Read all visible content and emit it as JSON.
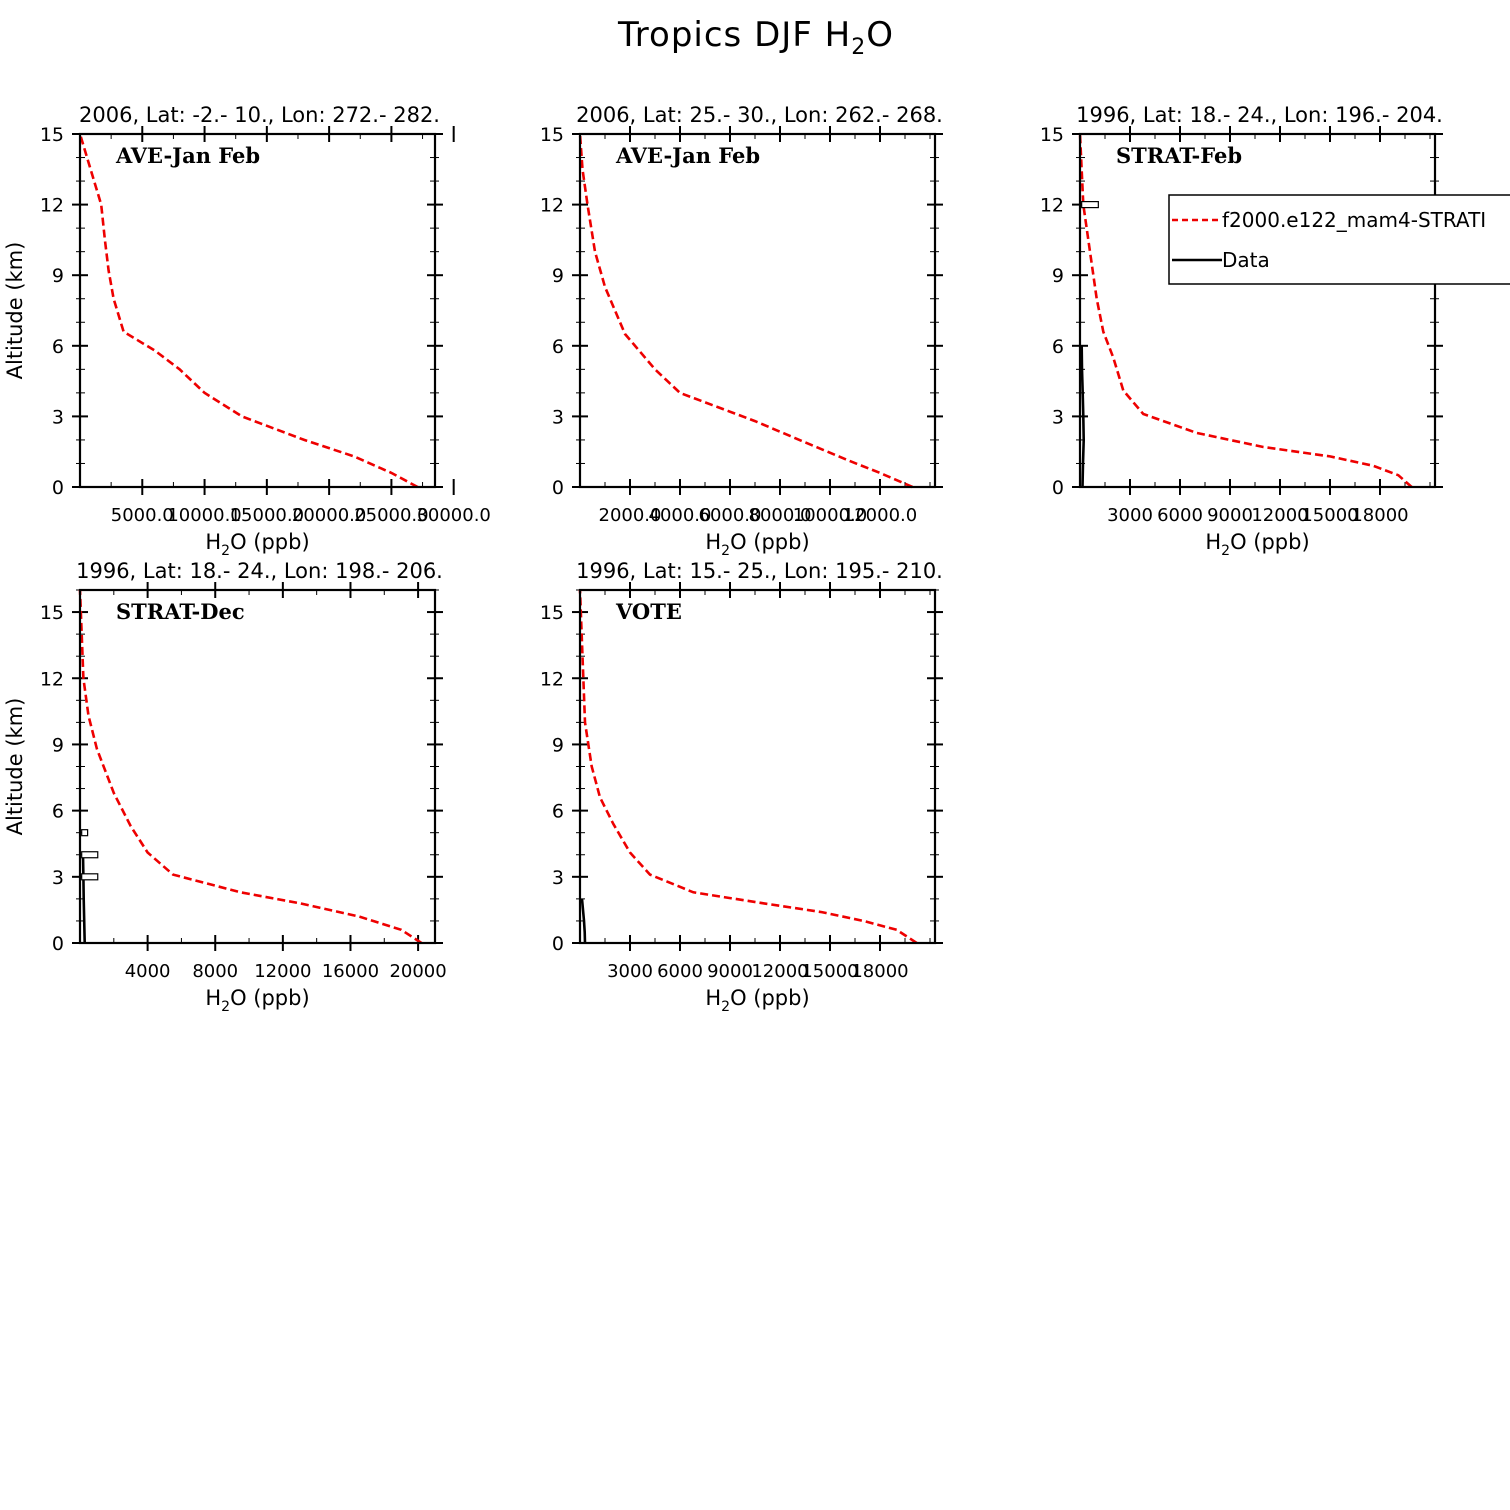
{
  "figure": {
    "title_main": "Tropics DJF H",
    "title_sub": "2",
    "title_tail": "O"
  },
  "legend": {
    "model_label": "f2000.e122_mam4-STRATI",
    "data_label": "Data",
    "model_color": "#ee0000",
    "data_color": "#000000"
  },
  "chart_data": [
    {
      "type": "line",
      "title": "2006, Lat: -2.- 10., Lon: 272.- 282.",
      "annotation": "AVE-Jan Feb",
      "xlabel_main": "H",
      "xlabel_sub": "2",
      "xlabel_tail": "O (ppb)",
      "ylabel": "Altitude (km)",
      "xlim": [
        0,
        28500
      ],
      "ylim": [
        0,
        15
      ],
      "yticks": [
        0,
        3,
        6,
        9,
        12,
        15
      ],
      "xticks": [
        5000,
        10000,
        15000,
        20000,
        25000,
        30000
      ],
      "xtick_labels": [
        "5000.0",
        "10000.0",
        "15000.0",
        "20000.0",
        "25000.0",
        "30000.0"
      ],
      "series": [
        {
          "name": "model",
          "x": [
            27100,
            25000,
            22000,
            18000,
            13000,
            10000,
            8000,
            6000,
            3500,
            2700,
            2300,
            2000,
            1700,
            0
          ],
          "y": [
            0,
            0.6,
            1.3,
            2.0,
            3.0,
            4.0,
            5.0,
            5.8,
            6.6,
            8.0,
            9.2,
            10.5,
            12.0,
            15.0
          ]
        }
      ],
      "obs": []
    },
    {
      "type": "line",
      "title": "2006, Lat: 25.- 30., Lon: 262.- 268.",
      "annotation": "AVE-Jan Feb",
      "xlabel_main": "H",
      "xlabel_sub": "2",
      "xlabel_tail": "O (ppb)",
      "ylabel": "",
      "xlim": [
        0,
        14200
      ],
      "ylim": [
        0,
        15
      ],
      "yticks": [
        0,
        3,
        6,
        9,
        12,
        15
      ],
      "xticks": [
        2000,
        4000,
        6000,
        8000,
        10000,
        12000
      ],
      "xtick_labels": [
        "2000.0",
        "4000.0",
        "6000.0",
        "8000.0",
        "10000.0",
        "12000.0"
      ],
      "series": [
        {
          "name": "model",
          "x": [
            13300,
            12000,
            10800,
            9000,
            7000,
            5500,
            4000,
            3000,
            1800,
            1000,
            600,
            300,
            100,
            0
          ],
          "y": [
            0,
            0.6,
            1.1,
            1.9,
            2.8,
            3.4,
            4.0,
            5.0,
            6.5,
            8.5,
            10.0,
            12.0,
            13.5,
            15.0
          ]
        }
      ],
      "obs": []
    },
    {
      "type": "line",
      "title": "1996, Lat: 18.- 24., Lon: 196.- 204.",
      "annotation": "STRAT-Feb",
      "xlabel_main": "H",
      "xlabel_sub": "2",
      "xlabel_tail": "O (ppb)",
      "ylabel": "",
      "xlim": [
        0,
        21300
      ],
      "ylim": [
        0,
        15
      ],
      "yticks": [
        0,
        3,
        6,
        9,
        12,
        15
      ],
      "xticks": [
        3000,
        6000,
        9000,
        12000,
        15000,
        18000
      ],
      "xtick_labels": [
        "3000",
        "6000",
        "9000",
        "12000",
        "15000",
        "18000"
      ],
      "series": [
        {
          "name": "model",
          "x": [
            19900,
            19100,
            17600,
            15000,
            11000,
            7000,
            3800,
            2600,
            2000,
            1400,
            1000,
            600,
            200,
            0
          ],
          "y": [
            0,
            0.5,
            0.9,
            1.3,
            1.7,
            2.3,
            3.1,
            4.1,
            5.5,
            6.6,
            8.0,
            10.0,
            12.0,
            15.0
          ]
        },
        {
          "name": "data",
          "x": [
            150,
            180,
            220,
            200,
            160,
            120,
            100
          ],
          "y": [
            0,
            1.0,
            2.0,
            3.0,
            4.0,
            5.0,
            6.0
          ]
        }
      ],
      "obs": [
        {
          "y": 12.0,
          "min": 100,
          "max": 1100
        }
      ]
    },
    {
      "type": "line",
      "title": "1996, Lat: 18.- 24., Lon: 198.- 206.",
      "annotation": "STRAT-Dec",
      "xlabel_main": "H",
      "xlabel_sub": "2",
      "xlabel_tail": "O (ppb)",
      "ylabel": "Altitude (km)",
      "xlim": [
        0,
        21000
      ],
      "ylim": [
        0,
        16
      ],
      "yticks": [
        0,
        3,
        6,
        9,
        12,
        15
      ],
      "xticks": [
        4000,
        8000,
        12000,
        16000,
        20000
      ],
      "xtick_labels": [
        "4000",
        "8000",
        "12000",
        "16000",
        "20000"
      ],
      "series": [
        {
          "name": "model",
          "x": [
            20200,
            19000,
            16500,
            13000,
            9500,
            5500,
            4000,
            3000,
            2000,
            1000,
            500,
            200,
            0
          ],
          "y": [
            0,
            0.6,
            1.2,
            1.8,
            2.3,
            3.1,
            4.1,
            5.3,
            6.8,
            8.8,
            10.3,
            12.0,
            16.0
          ]
        },
        {
          "name": "data",
          "x": [
            280,
            250,
            220,
            200,
            180
          ],
          "y": [
            0,
            1.0,
            2.0,
            3.0,
            4.0
          ]
        }
      ],
      "obs": [
        {
          "y": 3.0,
          "min": 100,
          "max": 1050
        },
        {
          "y": 4.0,
          "min": 100,
          "max": 1050
        },
        {
          "y": 5.0,
          "min": 100,
          "max": 450
        }
      ]
    },
    {
      "type": "line",
      "title": "1996, Lat: 15.- 25., Lon: 195.- 210.",
      "annotation": "VOTE",
      "xlabel_main": "H",
      "xlabel_sub": "2",
      "xlabel_tail": "O (ppb)",
      "ylabel": "",
      "xlim": [
        0,
        21300
      ],
      "ylim": [
        0,
        16
      ],
      "yticks": [
        0,
        3,
        6,
        9,
        12,
        15
      ],
      "xticks": [
        3000,
        6000,
        9000,
        12000,
        15000,
        18000
      ],
      "xtick_labels": [
        "3000",
        "6000",
        "9000",
        "12000",
        "15000",
        "18000"
      ],
      "series": [
        {
          "name": "model",
          "x": [
            20200,
            19000,
            17000,
            14500,
            11000,
            6800,
            4200,
            3000,
            2000,
            1200,
            700,
            300,
            0
          ],
          "y": [
            0,
            0.6,
            1.0,
            1.4,
            1.8,
            2.3,
            3.1,
            4.1,
            5.4,
            6.6,
            8.0,
            10.0,
            16.0
          ]
        },
        {
          "name": "data",
          "x": [
            300,
            280,
            240,
            180,
            120
          ],
          "y": [
            0,
            0.5,
            1.0,
            1.5,
            2.0
          ]
        }
      ],
      "obs": []
    }
  ]
}
